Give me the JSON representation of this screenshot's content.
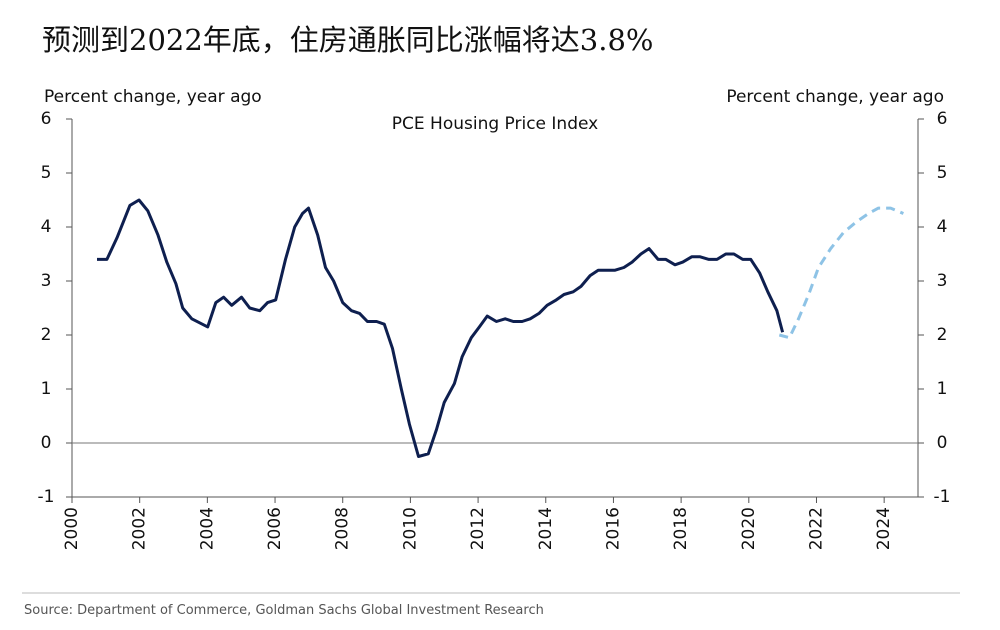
{
  "chart_data": {
    "type": "line",
    "title": "预测到2022年底，住房通胀同比涨幅将达3.8%",
    "subtitle": "PCE Housing Price Index",
    "y_label": "Percent change, year ago",
    "y2_label": "Percent change, year ago",
    "source": "Source: Department of Commerce, Goldman Sachs Global Investment Research",
    "xlim": [
      2000,
      2025
    ],
    "xticks": [
      2000,
      2002,
      2004,
      2006,
      2008,
      2010,
      2012,
      2014,
      2016,
      2018,
      2020,
      2022,
      2024
    ],
    "ylim": [
      -1,
      6
    ],
    "yticks": [
      -1,
      0,
      1,
      2,
      3,
      4,
      5,
      6
    ],
    "y2lim": [
      -1,
      6
    ],
    "y2ticks": [
      -1,
      0,
      1,
      2,
      3,
      4,
      5,
      6
    ],
    "reference_line": 0,
    "series": [
      {
        "color": "#0e1f4f",
        "dashed": false,
        "x": [
          2000.74,
          2001.03,
          2001.33,
          2001.71,
          2001.98,
          2002.24,
          2002.54,
          2002.8,
          2003.07,
          2003.27,
          2003.54,
          2004.01,
          2004.25,
          2004.48,
          2004.72,
          2005.01,
          2005.25,
          2005.55,
          2005.78,
          2006.02,
          2006.31,
          2006.58,
          2006.81,
          2006.99,
          2007.26,
          2007.49,
          2007.73,
          2008.0,
          2008.26,
          2008.5,
          2008.73,
          2009.0,
          2009.23,
          2009.47,
          2009.73,
          2009.97,
          2010.24,
          2010.53,
          2010.77,
          2011.0,
          2011.3,
          2011.53,
          2011.8,
          2012.04,
          2012.27,
          2012.54,
          2012.8,
          2013.04,
          2013.3,
          2013.54,
          2013.8,
          2014.04,
          2014.31,
          2014.54,
          2014.81,
          2015.04,
          2015.31,
          2015.55,
          2015.81,
          2016.05,
          2016.31,
          2016.55,
          2016.81,
          2017.05,
          2017.32,
          2017.55,
          2017.82,
          2018.05,
          2018.32,
          2018.55,
          2018.82,
          2019.06,
          2019.32,
          2019.56,
          2019.82,
          2020.06,
          2020.32,
          2020.56,
          2020.83,
          2021.0
        ],
        "values": [
          3.4,
          3.4,
          3.8,
          4.4,
          4.5,
          4.3,
          3.85,
          3.35,
          2.95,
          2.5,
          2.3,
          2.15,
          2.6,
          2.7,
          2.55,
          2.7,
          2.5,
          2.45,
          2.6,
          2.65,
          3.4,
          4.0,
          4.25,
          4.35,
          3.85,
          3.25,
          3.0,
          2.6,
          2.45,
          2.4,
          2.25,
          2.25,
          2.2,
          1.75,
          1.0,
          0.35,
          -0.25,
          -0.2,
          0.25,
          0.75,
          1.1,
          1.6,
          1.95,
          2.15,
          2.35,
          2.25,
          2.3,
          2.25,
          2.25,
          2.3,
          2.4,
          2.55,
          2.65,
          2.75,
          2.8,
          2.9,
          3.1,
          3.2,
          3.2,
          3.2,
          3.25,
          3.35,
          3.5,
          3.6,
          3.4,
          3.4,
          3.3,
          3.35,
          3.45,
          3.45,
          3.4,
          3.4,
          3.5,
          3.5,
          3.4,
          3.4,
          3.15,
          2.8,
          2.45,
          2.05
        ]
      },
      {
        "color": "#8ec3e6",
        "dashed": true,
        "x": [
          2020.9,
          2021.2,
          2021.47,
          2021.77,
          2022.06,
          2022.42,
          2022.8,
          2023.19,
          2023.54,
          2023.83,
          2024.19,
          2024.57
        ],
        "values": [
          2.0,
          1.95,
          2.3,
          2.75,
          3.25,
          3.6,
          3.9,
          4.1,
          4.25,
          4.35,
          4.35,
          4.25
        ]
      }
    ]
  }
}
